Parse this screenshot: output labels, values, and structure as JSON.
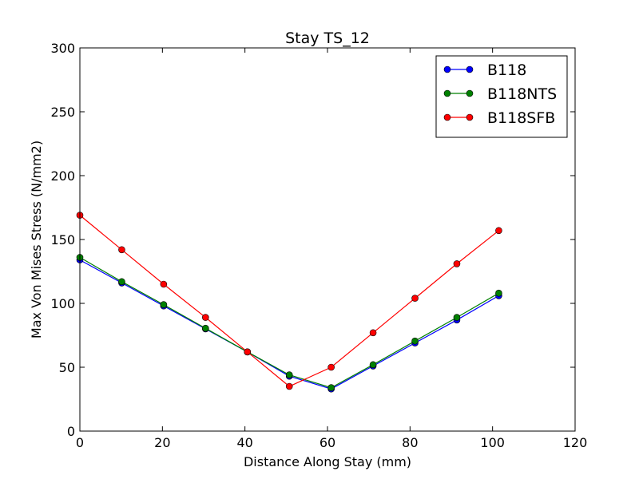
{
  "chart_data": {
    "type": "line",
    "title": "Stay TS_12",
    "xlabel": "Distance Along Stay (mm)",
    "ylabel": "Max Von Mises Stress (N/mm2)",
    "xlim": [
      0,
      120
    ],
    "ylim": [
      0,
      300
    ],
    "xticks": [
      0,
      20,
      40,
      60,
      80,
      100,
      120
    ],
    "yticks": [
      0,
      50,
      100,
      150,
      200,
      250,
      300
    ],
    "grid": false,
    "legend_position": "top-right",
    "x": [
      0,
      10.15,
      20.3,
      30.45,
      40.6,
      50.75,
      60.9,
      71.05,
      81.2,
      91.35,
      101.5
    ],
    "series": [
      {
        "name": "B118",
        "color": "#0000ff",
        "values": [
          134,
          116,
          98,
          80,
          62,
          43,
          33,
          51,
          69,
          87,
          106
        ]
      },
      {
        "name": "B118NTS",
        "color": "#008000",
        "values": [
          136,
          117,
          99,
          80.5,
          62,
          44,
          34,
          52,
          70.5,
          89,
          108
        ]
      },
      {
        "name": "B118SFB",
        "color": "#ff0000",
        "values": [
          169,
          142,
          115,
          89,
          62,
          35,
          50,
          77,
          104,
          131,
          157
        ]
      }
    ]
  }
}
